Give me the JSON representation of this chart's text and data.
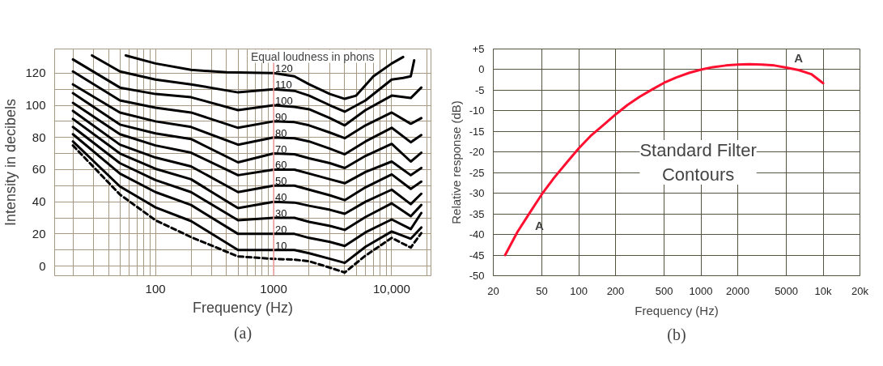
{
  "chart_data": [
    {
      "type": "line",
      "title": "(a)",
      "xlabel": "Frequency (Hz)",
      "ylabel": "Intensity in decibels",
      "legend_title": "Equal loudness in phons",
      "log": "x",
      "grid": true,
      "xlim": [
        14,
        21500
      ],
      "ylim": [
        -6,
        135
      ],
      "xticks": [
        {
          "value": 20,
          "label": null
        },
        {
          "value": 30,
          "label": null
        },
        {
          "value": 40,
          "label": null
        },
        {
          "value": 50,
          "label": null
        },
        {
          "value": 60,
          "label": null
        },
        {
          "value": 70,
          "label": null
        },
        {
          "value": 80,
          "label": null
        },
        {
          "value": 90,
          "label": null
        },
        100,
        {
          "value": 200,
          "label": null
        },
        {
          "value": 300,
          "label": null
        },
        {
          "value": 400,
          "label": null
        },
        {
          "value": 500,
          "label": null
        },
        {
          "value": 600,
          "label": null
        },
        {
          "value": 700,
          "label": null
        },
        {
          "value": 800,
          "label": null
        },
        {
          "value": 900,
          "label": null
        },
        1000,
        {
          "value": 2000,
          "label": null
        },
        {
          "value": 3000,
          "label": null
        },
        {
          "value": 4000,
          "label": null
        },
        {
          "value": 5000,
          "label": null
        },
        {
          "value": 6000,
          "label": null
        },
        {
          "value": 7000,
          "label": null
        },
        {
          "value": 8000,
          "label": null
        },
        {
          "value": 9000,
          "label": null
        },
        {
          "value": 10000,
          "label": "10,000"
        },
        {
          "value": 20000,
          "label": null
        }
      ],
      "yticks": [
        0,
        {
          "value": 10,
          "label": null
        },
        20,
        {
          "value": 30,
          "label": null
        },
        40,
        {
          "value": 50,
          "label": null
        },
        60,
        {
          "value": 70,
          "label": null
        },
        80,
        {
          "value": 90,
          "label": null
        },
        100,
        {
          "value": 110,
          "label": null
        },
        120
      ],
      "ref_lines": [
        {
          "axis": "x",
          "value": 1000,
          "color": "#f4a0a0"
        }
      ],
      "series": [
        {
          "name": "120",
          "color": "#000000",
          "x": [
            56,
            100,
            200,
            400,
            1000,
            1500,
            2000,
            3000,
            4000,
            5000,
            7000,
            10000,
            12500
          ],
          "values": [
            131,
            126,
            122,
            120.5,
            120,
            118,
            113,
            107,
            104,
            106,
            118,
            126,
            130
          ]
        },
        {
          "name": "110",
          "color": "#000000",
          "x": [
            29,
            50,
            100,
            200,
            500,
            1000,
            1500,
            2000,
            3000,
            4000,
            6000,
            10000,
            12500,
            14500,
            15500
          ],
          "values": [
            131,
            121,
            116,
            113,
            108,
            110,
            109,
            106,
            100,
            96,
            103,
            116,
            117,
            118,
            128
          ]
        },
        {
          "name": "100",
          "color": "#000000",
          "x": [
            20,
            50,
            100,
            200,
            500,
            1000,
            1500,
            2000,
            3000,
            4000,
            6000,
            10000,
            14500,
            17800
          ],
          "values": [
            128.5,
            111,
            107,
            105,
            97,
            100,
            99,
            97.5,
            92,
            87.5,
            97,
            106,
            104.5,
            111
          ]
        },
        {
          "name": "90",
          "color": "#000000",
          "x": [
            20,
            50,
            100,
            200,
            500,
            1000,
            1500,
            2000,
            3000,
            4000,
            6000,
            10000,
            14500,
            17800
          ],
          "values": [
            121,
            103,
            98.5,
            95.5,
            86,
            90,
            89.5,
            87.5,
            83,
            79.5,
            87.5,
            95.5,
            88.5,
            92
          ]
        },
        {
          "name": "80",
          "color": "#000000",
          "x": [
            20,
            50,
            100,
            200,
            500,
            1000,
            1500,
            2000,
            3000,
            4000,
            6000,
            10000,
            14500,
            17800
          ],
          "values": [
            113,
            95.5,
            90,
            86.5,
            75.5,
            80,
            79.5,
            77.5,
            73,
            69.5,
            77.5,
            86,
            77,
            81.5
          ]
        },
        {
          "name": "70",
          "color": "#000000",
          "x": [
            20,
            50,
            100,
            200,
            500,
            1000,
            1500,
            2000,
            3000,
            4000,
            6000,
            10000,
            14500,
            17800
          ],
          "values": [
            107.5,
            88,
            82.5,
            79,
            64.5,
            70,
            69.5,
            67,
            64,
            61,
            68.5,
            76,
            65,
            70.5
          ]
        },
        {
          "name": "60",
          "color": "#000000",
          "x": [
            20,
            50,
            100,
            200,
            500,
            1000,
            1500,
            2000,
            3000,
            4000,
            6000,
            10000,
            14500,
            17800
          ],
          "values": [
            101.5,
            82,
            75,
            70.5,
            56.5,
            60,
            60,
            57.5,
            54,
            51.5,
            58.5,
            65,
            56.5,
            61
          ]
        },
        {
          "name": "50",
          "color": "#000000",
          "x": [
            20,
            50,
            100,
            200,
            500,
            1000,
            1500,
            2000,
            3000,
            4000,
            6000,
            10000,
            14500,
            17800
          ],
          "values": [
            96.5,
            75.5,
            67.5,
            62,
            46,
            50,
            50,
            47.5,
            44,
            41,
            49,
            57,
            48,
            52.5
          ]
        },
        {
          "name": "40",
          "color": "#000000",
          "x": [
            20,
            50,
            100,
            200,
            500,
            1000,
            1500,
            2000,
            3000,
            4000,
            6000,
            10000,
            14500,
            17800
          ],
          "values": [
            91.5,
            70,
            60.5,
            54,
            36,
            40,
            39.5,
            37.5,
            35,
            32.5,
            40,
            47.5,
            38.5,
            45
          ]
        },
        {
          "name": "30",
          "color": "#000000",
          "x": [
            20,
            50,
            100,
            200,
            500,
            1000,
            1500,
            2000,
            3000,
            4000,
            6000,
            10000,
            14500,
            17800
          ],
          "values": [
            86.5,
            64,
            53.5,
            46,
            28.5,
            30,
            30,
            27.5,
            25,
            22.5,
            30.5,
            39,
            31,
            38
          ]
        },
        {
          "name": "20",
          "color": "#000000",
          "x": [
            20,
            50,
            100,
            200,
            500,
            1000,
            1500,
            2000,
            3000,
            4000,
            6000,
            10000,
            14500,
            17800
          ],
          "values": [
            82,
            57.5,
            46,
            38,
            20,
            20,
            20,
            17.5,
            15,
            12.5,
            21,
            29,
            23,
            33
          ]
        },
        {
          "name": "10",
          "color": "#000000",
          "x": [
            20,
            50,
            100,
            200,
            500,
            1000,
            1500,
            2000,
            3000,
            4000,
            6000,
            10000,
            14500,
            17800
          ],
          "values": [
            77.5,
            49.5,
            36.5,
            28,
            10,
            10,
            10,
            8,
            4.5,
            2,
            12,
            21.5,
            17,
            24
          ]
        },
        {
          "color": "#000000",
          "line_style": "dashed",
          "x": [
            20,
            50,
            100,
            200,
            500,
            1000,
            1500,
            2000,
            3000,
            4000,
            6000,
            10000,
            14500,
            17800
          ],
          "values": [
            75,
            44.5,
            28.5,
            18,
            6,
            4.5,
            4,
            3,
            -1,
            -4,
            6.5,
            17.5,
            11.5,
            20.5
          ]
        }
      ]
    },
    {
      "type": "line",
      "title": "(b)",
      "xlabel": "Frequency (Hz)",
      "ylabel": "Relative response (dB)",
      "log": "x",
      "grid": true,
      "xlim": [
        20,
        20000
      ],
      "ylim": [
        -50,
        5
      ],
      "xticks": [
        20,
        50,
        100,
        200,
        500,
        1000,
        2000,
        5000,
        {
          "value": 10000,
          "label": "10k"
        },
        {
          "value": 20000,
          "label": "20k"
        }
      ],
      "yticks": [
        -50,
        -45,
        -40,
        -35,
        -30,
        -25,
        -20,
        -15,
        -10,
        -5,
        0,
        {
          "value": 5,
          "label": "+5"
        }
      ],
      "annotations": [
        "Standard Filter\nContours"
      ],
      "series": [
        {
          "name": "A",
          "color": "#ff1030",
          "x": [
            25,
            31.5,
            40,
            50,
            63,
            80,
            100,
            125,
            160,
            200,
            250,
            315,
            400,
            500,
            630,
            800,
            1000,
            1250,
            1600,
            2000,
            2500,
            3150,
            4000,
            5000,
            6300,
            8000,
            10000
          ],
          "values": [
            -45,
            -39.4,
            -34.6,
            -30.2,
            -26.2,
            -22.5,
            -19.1,
            -16.1,
            -13.4,
            -10.9,
            -8.6,
            -6.6,
            -4.8,
            -3.2,
            -1.9,
            -0.8,
            0,
            0.6,
            1.0,
            1.2,
            1.3,
            1.2,
            1.0,
            0.5,
            -0.1,
            -1.1,
            -3.3
          ]
        }
      ]
    }
  ]
}
